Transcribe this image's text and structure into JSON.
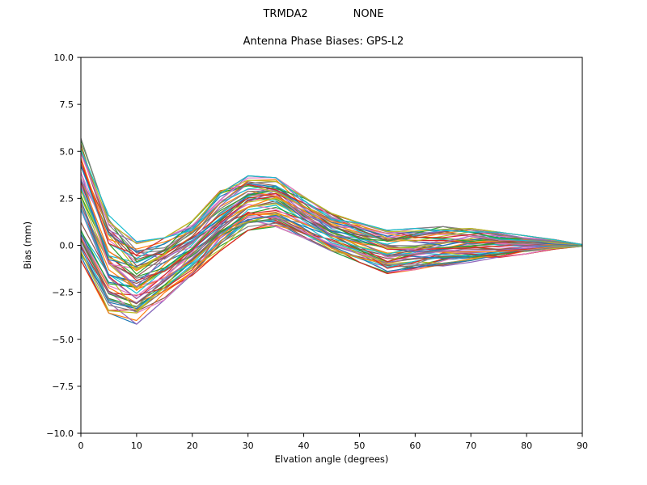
{
  "header": {
    "station": "TRMDA2",
    "radome": "NONE",
    "title": "Antenna Phase Biases: GPS-L2"
  },
  "chart_data": {
    "type": "line",
    "suptitle": "TRMDA2          NONE",
    "title": "Antenna Phase Biases: GPS-L2",
    "xlabel": "Elvation angle (degrees)",
    "ylabel": "Bias (mm)",
    "xlim": [
      0,
      90
    ],
    "ylim": [
      -10.0,
      10.0
    ],
    "grid": false,
    "legend": "none",
    "x_ticks": [
      0,
      10,
      20,
      30,
      40,
      50,
      60,
      70,
      80,
      90
    ],
    "x_tick_labels": [
      "0",
      "10",
      "20",
      "30",
      "40",
      "50",
      "60",
      "70",
      "80",
      "90"
    ],
    "y_ticks": [
      10.0,
      7.5,
      5.0,
      2.5,
      0.0,
      -2.5,
      -5.0,
      -7.5,
      -10.0
    ],
    "y_tick_labels": [
      "10.0",
      "7.5",
      "5.0",
      "2.5",
      "0.0",
      "−2.5",
      "−5.0",
      "−7.5",
      "−10.0"
    ],
    "x": [
      0,
      5,
      10,
      15,
      20,
      25,
      30,
      35,
      40,
      45,
      50,
      55,
      60,
      65,
      70,
      75,
      80,
      85,
      90
    ],
    "ensemble": {
      "description": "Ensemble of antenna phase bias curves vs elevation; values in mm, bounded by envelopes",
      "n_lines": 60,
      "envelope_upper": [
        5.7,
        1.6,
        0.2,
        0.4,
        1.3,
        2.9,
        3.7,
        3.6,
        2.6,
        1.7,
        1.2,
        0.8,
        0.9,
        1.0,
        0.9,
        0.7,
        0.5,
        0.3,
        0.05
      ],
      "envelope_lower": [
        -0.8,
        -3.6,
        -4.2,
        -2.9,
        -1.6,
        -0.3,
        0.8,
        1.0,
        0.4,
        -0.3,
        -0.9,
        -1.5,
        -1.3,
        -1.1,
        -0.9,
        -0.7,
        -0.45,
        -0.2,
        -0.05
      ],
      "colors": [
        "#1f77b4",
        "#ff7f0e",
        "#2ca02c",
        "#d62728",
        "#9467bd",
        "#8c564b",
        "#e377c2",
        "#7f7f7f",
        "#bcbd22",
        "#17becf"
      ]
    }
  },
  "plot_style": {
    "background": "#ffffff",
    "axes_edge_color": "#000000",
    "line_width": 1.2
  }
}
